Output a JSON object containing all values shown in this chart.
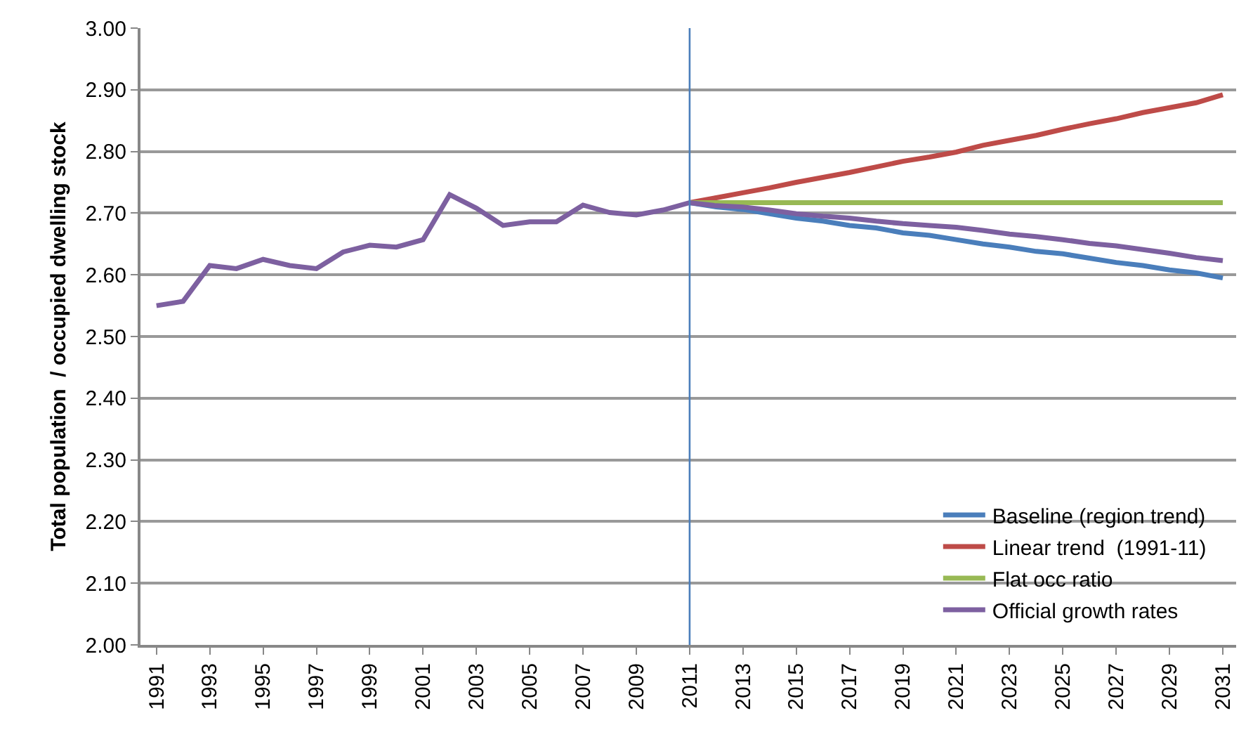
{
  "chart_data": {
    "type": "line",
    "ylabel": "Total population  / occupied dwelling stock",
    "xlim": [
      1990.4,
      2031.5
    ],
    "xticks": [
      1991,
      1993,
      1995,
      1997,
      1999,
      2001,
      2003,
      2005,
      2007,
      2009,
      2011,
      2013,
      2015,
      2017,
      2019,
      2021,
      2023,
      2025,
      2027,
      2029,
      2031
    ],
    "ylim": [
      2.0,
      3.0
    ],
    "yticks": [
      {
        "value": 2.0,
        "label": "2.00"
      },
      {
        "value": 2.1,
        "label": "2.10"
      },
      {
        "value": 2.2,
        "label": "2.20"
      },
      {
        "value": 2.3,
        "label": "2.30"
      },
      {
        "value": 2.4,
        "label": "2.40"
      },
      {
        "value": 2.5,
        "label": "2.50"
      },
      {
        "value": 2.6,
        "label": "2.60"
      },
      {
        "value": 2.7,
        "label": "2.70"
      },
      {
        "value": 2.8,
        "label": "2.80"
      },
      {
        "value": 2.9,
        "label": "2.90"
      },
      {
        "value": 3.0,
        "label": "3.00"
      }
    ],
    "grid": "y",
    "legend": "bottom right",
    "marker": "none",
    "line_style": "solid",
    "ref_lines": [
      {
        "axis": "x",
        "value": 2011,
        "color": "#4a7ebb"
      }
    ],
    "series": [
      {
        "name": "Baseline (region trend)",
        "color": "#4a7ebb",
        "x": [
          2011,
          2012,
          2013,
          2014,
          2015,
          2016,
          2017,
          2018,
          2019,
          2020,
          2021,
          2022,
          2023,
          2024,
          2025,
          2026,
          2027,
          2028,
          2029,
          2030,
          2031
        ],
        "values": [
          2.717,
          2.71,
          2.706,
          2.699,
          2.692,
          2.687,
          2.68,
          2.676,
          2.668,
          2.664,
          2.657,
          2.65,
          2.645,
          2.638,
          2.634,
          2.627,
          2.62,
          2.615,
          2.608,
          2.603,
          2.595
        ]
      },
      {
        "name": "Linear trend  (1991-11)",
        "color": "#be4b48",
        "x": [
          2011,
          2012,
          2013,
          2014,
          2015,
          2016,
          2017,
          2018,
          2019,
          2020,
          2021,
          2022,
          2023,
          2024,
          2025,
          2026,
          2027,
          2028,
          2029,
          2030,
          2031
        ],
        "values": [
          2.717,
          2.725,
          2.733,
          2.741,
          2.75,
          2.758,
          2.766,
          2.775,
          2.784,
          2.791,
          2.799,
          2.81,
          2.818,
          2.826,
          2.836,
          2.845,
          2.853,
          2.863,
          2.871,
          2.879,
          2.892
        ]
      },
      {
        "name": "Flat occ ratio",
        "color": "#98b954",
        "x": [
          2011,
          2031
        ],
        "values": [
          2.717,
          2.717
        ]
      },
      {
        "name": "Official growth rates",
        "color": "#7d60a0",
        "x": [
          1991,
          1992,
          1993,
          1994,
          1995,
          1996,
          1997,
          1998,
          1999,
          2000,
          2001,
          2002,
          2003,
          2004,
          2005,
          2006,
          2007,
          2008,
          2009,
          2010,
          2011,
          2012,
          2013,
          2014,
          2015,
          2016,
          2017,
          2018,
          2019,
          2020,
          2021,
          2022,
          2023,
          2024,
          2025,
          2026,
          2027,
          2028,
          2029,
          2030,
          2031
        ],
        "values": [
          2.55,
          2.557,
          2.615,
          2.61,
          2.625,
          2.615,
          2.61,
          2.637,
          2.648,
          2.645,
          2.657,
          2.73,
          2.708,
          2.68,
          2.686,
          2.686,
          2.713,
          2.701,
          2.697,
          2.705,
          2.717,
          2.712,
          2.71,
          2.705,
          2.699,
          2.695,
          2.692,
          2.687,
          2.683,
          2.68,
          2.677,
          2.672,
          2.666,
          2.662,
          2.657,
          2.651,
          2.647,
          2.641,
          2.635,
          2.628,
          2.623
        ]
      }
    ]
  }
}
